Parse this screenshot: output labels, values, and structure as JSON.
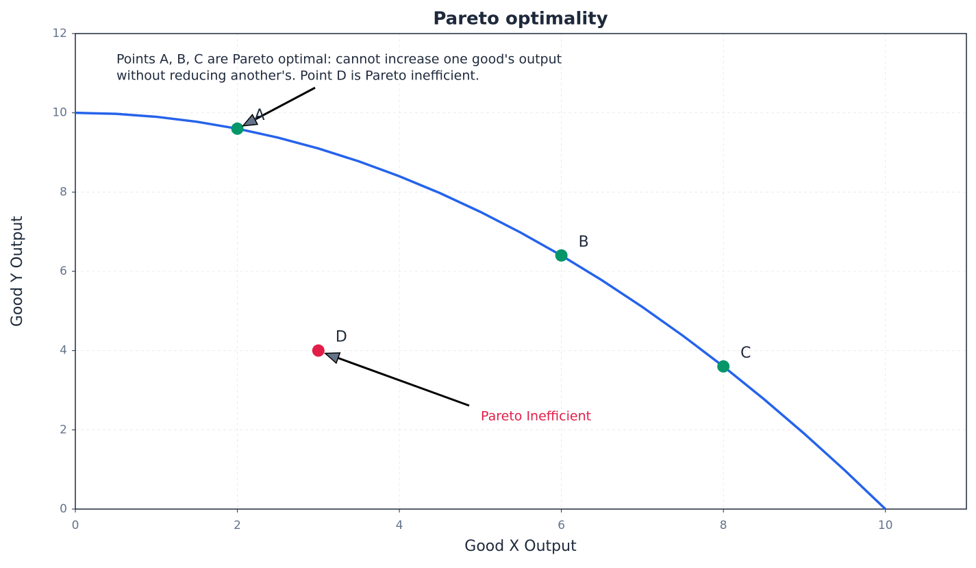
{
  "chart_data": {
    "type": "line",
    "title": "Pareto optimality",
    "x_label": "Good X Output",
    "y_label": "Good Y Output",
    "xlim": [
      0,
      11
    ],
    "ylim": [
      0,
      12
    ],
    "xticks": [
      0,
      2,
      4,
      6,
      8,
      10
    ],
    "yticks": [
      0,
      2,
      4,
      6,
      8,
      10,
      12
    ],
    "grid": true,
    "series": [
      {
        "color": "#2563eb",
        "x": [
          0,
          0.5,
          1,
          1.5,
          2,
          2.5,
          3,
          3.5,
          4,
          4.5,
          5,
          5.5,
          6,
          6.5,
          7,
          7.5,
          8,
          8.5,
          9,
          9.5,
          10
        ],
        "values": [
          10,
          9.975,
          9.9,
          9.775,
          9.6,
          9.375,
          9.1,
          8.775,
          8.4,
          7.975,
          7.5,
          6.975,
          6.4,
          5.775,
          5.1,
          4.375,
          3.6,
          2.775,
          1.9,
          0.975,
          0
        ]
      }
    ],
    "points": [
      {
        "label": "A",
        "x": 2,
        "y": 9.6,
        "color": "#059669"
      },
      {
        "label": "B",
        "x": 6,
        "y": 6.4,
        "color": "#059669"
      },
      {
        "label": "C",
        "x": 8,
        "y": 3.6,
        "color": "#059669"
      },
      {
        "label": "D",
        "x": 3,
        "y": 4,
        "color": "#e11d48"
      }
    ],
    "note": [
      "Points A, B, C are Pareto optimal: cannot increase one good's output",
      "without reducing another's. Point D is Pareto inefficient."
    ],
    "inefficient_label": {
      "text": "Pareto Inefficient",
      "color": "#e11d48"
    }
  }
}
